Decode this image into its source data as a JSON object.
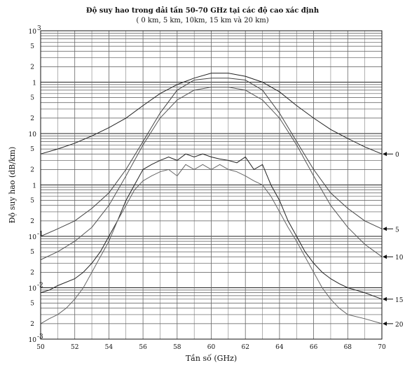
{
  "chart_data": {
    "type": "line",
    "title": "Độ suy hao trong dải tần 50-70 GHz tại các độ cao xác định",
    "subtitle": "( 0 km, 5 km, 10km, 15 km và 20 km)",
    "xlabel": "Tần số (GHz)",
    "ylabel": "Độ suy hao (dB/km)",
    "xlim": [
      50,
      70
    ],
    "ylim": [
      0.001,
      1000
    ],
    "yscale": "log",
    "grid": true,
    "x_tick_labels": [
      "50",
      "52",
      "54",
      "56",
      "58",
      "60",
      "62",
      "64",
      "66",
      "68",
      "70"
    ],
    "y_decade_labels": [
      "10",
      "1",
      "10",
      "1",
      "10",
      "10",
      "10"
    ],
    "y_decade_superscripts": [
      "3",
      "",
      "",
      "",
      "-1",
      "-2",
      "-3"
    ],
    "y_minor_labels": [
      "2",
      "5"
    ],
    "series": [
      {
        "name": "0",
        "x": [
          50,
          51,
          52,
          53,
          54,
          55,
          56,
          57,
          58,
          59,
          60,
          61,
          62,
          63,
          64,
          65,
          66,
          67,
          68,
          69,
          70
        ],
        "values": [
          4,
          5,
          6.5,
          9,
          13,
          20,
          35,
          60,
          90,
          120,
          150,
          150,
          130,
          100,
          65,
          35,
          20,
          12,
          8,
          5.5,
          4
        ]
      },
      {
        "name": "5",
        "x": [
          50,
          51,
          52,
          53,
          54,
          55,
          56,
          57,
          58,
          59,
          60,
          61,
          62,
          63,
          64,
          65,
          66,
          67,
          68,
          69,
          70
        ],
        "values": [
          0.1,
          0.14,
          0.2,
          0.35,
          0.7,
          2,
          7,
          25,
          70,
          110,
          120,
          120,
          110,
          70,
          25,
          7,
          2,
          0.7,
          0.35,
          0.2,
          0.14
        ]
      },
      {
        "name": "10",
        "x": [
          50,
          51,
          52,
          53,
          54,
          55,
          56,
          57,
          58,
          59,
          60,
          61,
          62,
          63,
          64,
          65,
          66,
          67,
          68,
          69,
          70
        ],
        "values": [
          0.035,
          0.05,
          0.08,
          0.15,
          0.4,
          1.5,
          6,
          20,
          45,
          70,
          80,
          80,
          70,
          45,
          20,
          6,
          1.5,
          0.4,
          0.15,
          0.07,
          0.04
        ]
      },
      {
        "name": "15",
        "x": [
          50,
          50.5,
          51,
          52,
          52.5,
          53,
          53.5,
          54,
          54.5,
          55,
          55.5,
          56,
          56.5,
          57,
          57.5,
          58,
          58.5,
          59,
          59.5,
          60,
          60.5,
          61,
          61.5,
          62,
          62.5,
          63,
          63.5,
          64,
          64.5,
          65,
          65.5,
          66,
          66.5,
          67,
          67.5,
          68,
          69,
          70
        ],
        "values": [
          0.008,
          0.009,
          0.011,
          0.015,
          0.02,
          0.03,
          0.05,
          0.1,
          0.2,
          0.5,
          1,
          2,
          2.5,
          3,
          3.5,
          3,
          4,
          3.5,
          4,
          3.5,
          3.2,
          3,
          2.7,
          3.5,
          2,
          2.5,
          1,
          0.5,
          0.2,
          0.1,
          0.05,
          0.03,
          0.02,
          0.015,
          0.012,
          0.01,
          0.008,
          0.006
        ]
      },
      {
        "name": "20",
        "x": [
          50,
          50.5,
          51,
          51.5,
          52,
          52.5,
          53,
          53.5,
          54,
          54.5,
          55,
          55.5,
          56,
          56.5,
          57,
          57.5,
          58,
          58.5,
          59,
          59.5,
          60,
          60.5,
          61,
          61.5,
          62,
          62.5,
          63,
          63.5,
          64,
          64.5,
          65,
          65.5,
          66,
          66.5,
          67,
          67.5,
          68,
          69,
          70
        ],
        "values": [
          0.002,
          0.0025,
          0.003,
          0.004,
          0.006,
          0.01,
          0.02,
          0.04,
          0.08,
          0.2,
          0.4,
          0.8,
          1.2,
          1.5,
          1.8,
          2,
          1.5,
          2.5,
          2,
          2.5,
          2,
          2.5,
          2,
          1.8,
          1.5,
          1.2,
          1,
          0.6,
          0.3,
          0.15,
          0.08,
          0.04,
          0.02,
          0.01,
          0.006,
          0.004,
          0.003,
          0.0025,
          0.002
        ]
      }
    ]
  }
}
